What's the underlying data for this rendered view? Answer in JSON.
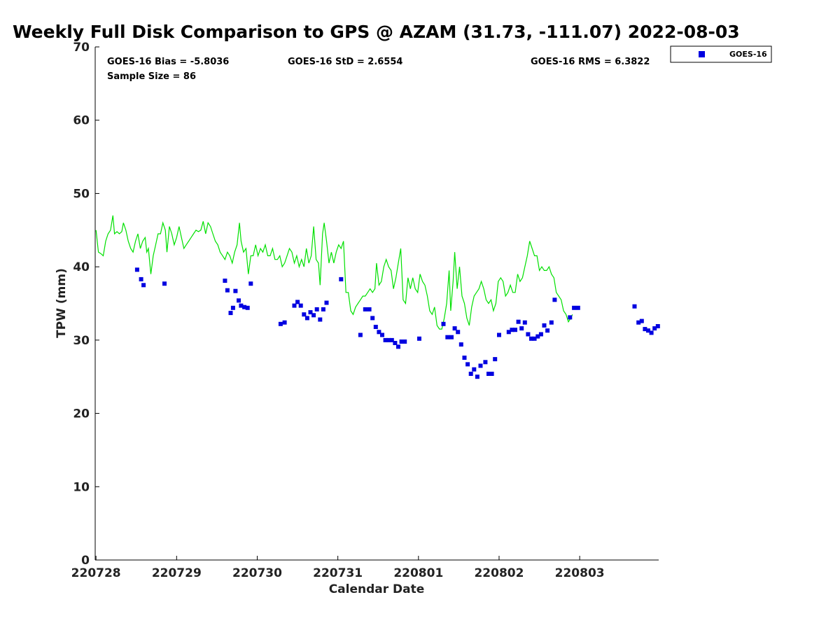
{
  "chart_data": {
    "type": "scatter",
    "title": "Weekly Full Disk Comparison to GPS @ AZAM (31.73, -111.07) 2022-08-03",
    "xlabel": "Calendar Date",
    "ylabel": "TPW (mm)",
    "ylim": [
      0,
      70
    ],
    "xlim": [
      -0.01,
      6.98
    ],
    "yticks": [
      0,
      10,
      20,
      30,
      40,
      50,
      60,
      70
    ],
    "ytick_labels": [
      "0",
      "10",
      "20",
      "30",
      "40",
      "50",
      "60",
      "70"
    ],
    "xticks": [
      0,
      1,
      2,
      3,
      4,
      5,
      6
    ],
    "xtick_labels": [
      "220728",
      "220729",
      "220730",
      "220731",
      "220801",
      "220802",
      "220803"
    ],
    "stats": {
      "bias": "GOES-16 Bias = -5.8036",
      "std": "GOES-16 StD = 2.6554",
      "rms": "GOES-16 RMS = 6.3822",
      "sample": "Sample Size = 86"
    },
    "legend": {
      "label": "GOES-16",
      "position": "top-right-outside"
    },
    "colors": {
      "gps_line": "#00e000",
      "goes": "#0000e0"
    },
    "series": [
      {
        "name": "GPS",
        "style": "line",
        "points": [
          [
            0.0,
            45.0
          ],
          [
            0.03,
            42.0
          ],
          [
            0.06,
            41.8
          ],
          [
            0.09,
            41.5
          ],
          [
            0.12,
            43.5
          ],
          [
            0.15,
            44.5
          ],
          [
            0.18,
            45.0
          ],
          [
            0.21,
            47.0
          ],
          [
            0.23,
            44.5
          ],
          [
            0.26,
            44.8
          ],
          [
            0.29,
            44.5
          ],
          [
            0.32,
            44.8
          ],
          [
            0.34,
            46.0
          ],
          [
            0.37,
            45.0
          ],
          [
            0.4,
            43.5
          ],
          [
            0.43,
            42.5
          ],
          [
            0.46,
            42.0
          ],
          [
            0.49,
            43.5
          ],
          [
            0.52,
            44.5
          ],
          [
            0.55,
            42.5
          ],
          [
            0.58,
            43.5
          ],
          [
            0.61,
            44.0
          ],
          [
            0.63,
            42.0
          ],
          [
            0.65,
            42.5
          ],
          [
            0.68,
            39.0
          ],
          [
            0.71,
            41.5
          ],
          [
            0.74,
            43.0
          ],
          [
            0.77,
            44.5
          ],
          [
            0.8,
            44.5
          ],
          [
            0.83,
            46.0
          ],
          [
            0.86,
            45.0
          ],
          [
            0.88,
            42.0
          ],
          [
            0.91,
            45.5
          ],
          [
            0.94,
            44.5
          ],
          [
            0.97,
            43.0
          ],
          [
            1.0,
            44.0
          ],
          [
            1.03,
            45.5
          ],
          [
            1.06,
            44.0
          ],
          [
            1.09,
            42.5
          ],
          [
            1.12,
            43.0
          ],
          [
            1.15,
            43.5
          ],
          [
            1.18,
            44.0
          ],
          [
            1.21,
            44.5
          ],
          [
            1.24,
            45.0
          ],
          [
            1.27,
            44.8
          ],
          [
            1.3,
            45.0
          ],
          [
            1.33,
            46.2
          ],
          [
            1.36,
            44.5
          ],
          [
            1.39,
            46.0
          ],
          [
            1.42,
            45.5
          ],
          [
            1.45,
            44.5
          ],
          [
            1.48,
            43.5
          ],
          [
            1.51,
            43.0
          ],
          [
            1.54,
            42.0
          ],
          [
            1.57,
            41.5
          ],
          [
            1.6,
            41.0
          ],
          [
            1.63,
            42.0
          ],
          [
            1.66,
            41.5
          ],
          [
            1.69,
            40.5
          ],
          [
            1.72,
            42.0
          ],
          [
            1.75,
            43.0
          ],
          [
            1.78,
            46.0
          ],
          [
            1.8,
            43.5
          ],
          [
            1.83,
            42.0
          ],
          [
            1.86,
            42.5
          ],
          [
            1.89,
            39.0
          ],
          [
            1.92,
            41.5
          ],
          [
            1.95,
            41.5
          ],
          [
            1.98,
            43.0
          ],
          [
            2.01,
            41.5
          ],
          [
            2.04,
            42.5
          ],
          [
            2.07,
            42.0
          ],
          [
            2.1,
            43.0
          ],
          [
            2.13,
            41.5
          ],
          [
            2.16,
            41.5
          ],
          [
            2.19,
            42.5
          ],
          [
            2.22,
            41.0
          ],
          [
            2.25,
            41.0
          ],
          [
            2.28,
            41.5
          ],
          [
            2.31,
            40.0
          ],
          [
            2.34,
            40.5
          ],
          [
            2.37,
            41.5
          ],
          [
            2.4,
            42.5
          ],
          [
            2.43,
            42.0
          ],
          [
            2.46,
            40.5
          ],
          [
            2.49,
            41.5
          ],
          [
            2.52,
            40.0
          ],
          [
            2.55,
            41.0
          ],
          [
            2.58,
            40.0
          ],
          [
            2.61,
            42.5
          ],
          [
            2.64,
            40.5
          ],
          [
            2.67,
            41.5
          ],
          [
            2.7,
            45.5
          ],
          [
            2.73,
            41.0
          ],
          [
            2.76,
            40.5
          ],
          [
            2.78,
            37.5
          ],
          [
            2.81,
            44.5
          ],
          [
            2.83,
            46.0
          ],
          [
            2.86,
            43.5
          ],
          [
            2.89,
            40.5
          ],
          [
            2.92,
            42.0
          ],
          [
            2.95,
            40.5
          ],
          [
            2.98,
            42.0
          ],
          [
            3.01,
            43.0
          ],
          [
            3.04,
            42.5
          ],
          [
            3.07,
            43.5
          ],
          [
            3.1,
            36.5
          ],
          [
            3.13,
            36.5
          ],
          [
            3.16,
            34.0
          ],
          [
            3.19,
            33.5
          ],
          [
            3.22,
            34.5
          ],
          [
            3.25,
            35.0
          ],
          [
            3.28,
            35.5
          ],
          [
            3.31,
            36.0
          ],
          [
            3.34,
            36.0
          ],
          [
            3.37,
            36.5
          ],
          [
            3.4,
            37.0
          ],
          [
            3.43,
            36.5
          ],
          [
            3.46,
            37.0
          ],
          [
            3.48,
            40.5
          ],
          [
            3.51,
            37.5
          ],
          [
            3.54,
            38.0
          ],
          [
            3.57,
            40.0
          ],
          [
            3.6,
            41.0
          ],
          [
            3.63,
            40.0
          ],
          [
            3.66,
            39.5
          ],
          [
            3.69,
            37.0
          ],
          [
            3.72,
            38.5
          ],
          [
            3.75,
            40.5
          ],
          [
            3.78,
            42.5
          ],
          [
            3.81,
            35.5
          ],
          [
            3.84,
            35.0
          ],
          [
            3.87,
            38.5
          ],
          [
            3.9,
            37.0
          ],
          [
            3.93,
            38.5
          ],
          [
            3.96,
            37.0
          ],
          [
            3.99,
            36.5
          ],
          [
            4.02,
            39.0
          ],
          [
            4.05,
            38.0
          ],
          [
            4.08,
            37.5
          ],
          [
            4.11,
            36.0
          ],
          [
            4.14,
            34.0
          ],
          [
            4.17,
            33.5
          ],
          [
            4.2,
            34.5
          ],
          [
            4.23,
            32.0
          ],
          [
            4.26,
            31.5
          ],
          [
            4.29,
            31.5
          ],
          [
            4.32,
            33.0
          ],
          [
            4.35,
            35.0
          ],
          [
            4.38,
            39.5
          ],
          [
            4.4,
            34.0
          ],
          [
            4.43,
            38.0
          ],
          [
            4.45,
            42.0
          ],
          [
            4.48,
            37.0
          ],
          [
            4.51,
            40.0
          ],
          [
            4.54,
            36.0
          ],
          [
            4.57,
            35.0
          ],
          [
            4.6,
            33.0
          ],
          [
            4.63,
            32.0
          ],
          [
            4.66,
            34.5
          ],
          [
            4.69,
            36.0
          ],
          [
            4.72,
            36.5
          ],
          [
            4.75,
            37.0
          ],
          [
            4.78,
            38.0
          ],
          [
            4.81,
            37.0
          ],
          [
            4.84,
            35.5
          ],
          [
            4.87,
            35.0
          ],
          [
            4.9,
            35.5
          ],
          [
            4.93,
            34.0
          ],
          [
            4.96,
            35.0
          ],
          [
            4.99,
            38.0
          ],
          [
            5.02,
            38.5
          ],
          [
            5.05,
            38.0
          ],
          [
            5.08,
            36.0
          ],
          [
            5.11,
            36.5
          ],
          [
            5.14,
            37.5
          ],
          [
            5.17,
            36.5
          ],
          [
            5.2,
            36.5
          ],
          [
            5.23,
            39.0
          ],
          [
            5.26,
            38.0
          ],
          [
            5.29,
            38.5
          ],
          [
            5.32,
            40.0
          ],
          [
            5.35,
            41.5
          ],
          [
            5.38,
            43.5
          ],
          [
            5.41,
            42.5
          ],
          [
            5.44,
            41.5
          ],
          [
            5.47,
            41.5
          ],
          [
            5.5,
            39.5
          ],
          [
            5.53,
            40.0
          ],
          [
            5.56,
            39.5
          ],
          [
            5.59,
            39.5
          ],
          [
            5.62,
            40.0
          ],
          [
            5.65,
            39.0
          ],
          [
            5.68,
            38.5
          ],
          [
            5.71,
            36.5
          ],
          [
            5.74,
            36.0
          ],
          [
            5.77,
            35.5
          ],
          [
            5.8,
            34.0
          ],
          [
            5.83,
            33.5
          ],
          [
            5.86,
            32.5
          ],
          [
            5.89,
            33.0
          ],
          [
            5.91,
            33.5
          ]
        ]
      },
      {
        "name": "GOES-16",
        "style": "markers",
        "points": [
          [
            0.51,
            39.6
          ],
          [
            0.56,
            38.3
          ],
          [
            0.59,
            37.5
          ],
          [
            0.85,
            37.7
          ],
          [
            1.6,
            38.1
          ],
          [
            1.63,
            36.8
          ],
          [
            1.67,
            33.7
          ],
          [
            1.7,
            34.4
          ],
          [
            1.73,
            36.7
          ],
          [
            1.77,
            35.4
          ],
          [
            1.8,
            34.7
          ],
          [
            1.84,
            34.5
          ],
          [
            1.88,
            34.4
          ],
          [
            1.92,
            37.7
          ],
          [
            2.29,
            32.2
          ],
          [
            2.34,
            32.4
          ],
          [
            2.46,
            34.7
          ],
          [
            2.5,
            35.2
          ],
          [
            2.54,
            34.7
          ],
          [
            2.58,
            33.5
          ],
          [
            2.62,
            33.0
          ],
          [
            2.66,
            33.8
          ],
          [
            2.7,
            33.4
          ],
          [
            2.74,
            34.2
          ],
          [
            2.78,
            32.8
          ],
          [
            2.82,
            34.2
          ],
          [
            2.86,
            35.1
          ],
          [
            3.04,
            38.3
          ],
          [
            3.28,
            30.7
          ],
          [
            3.34,
            34.2
          ],
          [
            3.39,
            34.2
          ],
          [
            3.43,
            33.0
          ],
          [
            3.47,
            31.8
          ],
          [
            3.51,
            31.1
          ],
          [
            3.55,
            30.7
          ],
          [
            3.59,
            30.0
          ],
          [
            3.63,
            30.0
          ],
          [
            3.67,
            30.0
          ],
          [
            3.71,
            29.6
          ],
          [
            3.75,
            29.1
          ],
          [
            3.79,
            29.8
          ],
          [
            3.83,
            29.8
          ],
          [
            4.01,
            30.2
          ],
          [
            4.31,
            32.2
          ],
          [
            4.36,
            30.4
          ],
          [
            4.41,
            30.4
          ],
          [
            4.45,
            31.6
          ],
          [
            4.49,
            31.1
          ],
          [
            4.53,
            29.4
          ],
          [
            4.57,
            27.6
          ],
          [
            4.61,
            26.7
          ],
          [
            4.65,
            25.4
          ],
          [
            4.69,
            26.0
          ],
          [
            4.73,
            25.0
          ],
          [
            4.77,
            26.5
          ],
          [
            4.83,
            27.0
          ],
          [
            4.87,
            25.4
          ],
          [
            4.91,
            25.4
          ],
          [
            4.95,
            27.4
          ],
          [
            5.0,
            30.7
          ],
          [
            5.12,
            31.1
          ],
          [
            5.16,
            31.4
          ],
          [
            5.2,
            31.4
          ],
          [
            5.24,
            32.5
          ],
          [
            5.28,
            31.6
          ],
          [
            5.32,
            32.4
          ],
          [
            5.36,
            30.8
          ],
          [
            5.4,
            30.2
          ],
          [
            5.44,
            30.2
          ],
          [
            5.48,
            30.5
          ],
          [
            5.52,
            30.8
          ],
          [
            5.56,
            32.0
          ],
          [
            5.6,
            31.3
          ],
          [
            5.65,
            32.4
          ],
          [
            5.69,
            35.5
          ],
          [
            5.88,
            33.1
          ],
          [
            5.93,
            34.4
          ],
          [
            5.98,
            34.4
          ],
          [
            6.68,
            34.6
          ],
          [
            6.73,
            32.4
          ],
          [
            6.77,
            32.6
          ],
          [
            6.81,
            31.5
          ],
          [
            6.85,
            31.3
          ],
          [
            6.89,
            31.0
          ],
          [
            6.93,
            31.6
          ],
          [
            6.97,
            31.9
          ]
        ]
      }
    ]
  }
}
